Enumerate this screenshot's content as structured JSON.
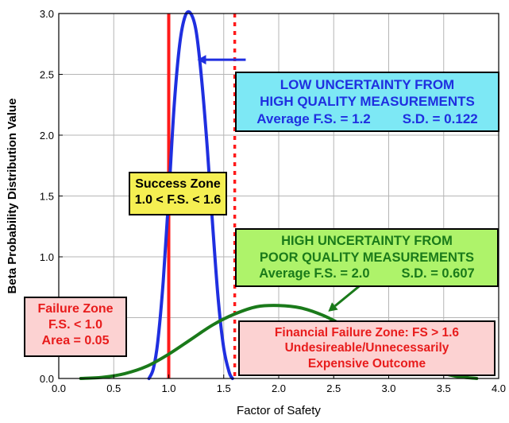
{
  "chart_data": {
    "type": "line",
    "xlabel": "Factor of Safety",
    "ylabel": "Beta Probability Distribution Value",
    "xlim": [
      0.0,
      4.0
    ],
    "ylim": [
      0.0,
      3.0
    ],
    "xticks": [
      "0.0",
      "0.5",
      "1.0",
      "1.5",
      "2.0",
      "2.5",
      "3.0",
      "3.5",
      "4.0"
    ],
    "yticks": [
      "0.0",
      "0.5",
      "1.0",
      "1.5",
      "2.0",
      "2.5",
      "3.0"
    ],
    "grid": true,
    "series": [
      {
        "color": "#1f2fe0",
        "x": [
          0.82,
          0.86,
          0.9,
          0.95,
          1.0,
          1.05,
          1.1,
          1.15,
          1.2,
          1.25,
          1.3,
          1.35,
          1.4,
          1.45,
          1.5,
          1.55,
          1.58
        ],
        "y": [
          0.0,
          0.08,
          0.3,
          0.8,
          1.5,
          2.25,
          2.75,
          2.98,
          3.0,
          2.85,
          2.45,
          1.9,
          1.25,
          0.65,
          0.25,
          0.05,
          0.0
        ]
      },
      {
        "color": "#1a7a1a",
        "x": [
          0.2,
          0.4,
          0.6,
          0.8,
          1.0,
          1.2,
          1.4,
          1.6,
          1.8,
          2.0,
          2.2,
          2.4,
          2.6,
          2.8,
          3.0,
          3.2,
          3.4,
          3.6,
          3.8
        ],
        "y": [
          0.0,
          0.01,
          0.04,
          0.1,
          0.2,
          0.32,
          0.44,
          0.53,
          0.59,
          0.6,
          0.58,
          0.52,
          0.43,
          0.33,
          0.23,
          0.14,
          0.07,
          0.02,
          0.0
        ]
      }
    ],
    "vlines": [
      {
        "x": 1.0,
        "color": "#ff1a1a",
        "style": "solid"
      },
      {
        "x": 1.6,
        "color": "#ff1a1a",
        "style": "dotted"
      }
    ],
    "arrows": [
      {
        "color": "#1f2fe0",
        "from": [
          1.7,
          2.62
        ],
        "to": [
          1.26,
          2.62
        ]
      },
      {
        "color": "#1a7a1a",
        "from": [
          2.95,
          0.92
        ],
        "to": [
          2.45,
          0.55
        ]
      }
    ]
  },
  "annotations": {
    "low": {
      "line1": "LOW  UNCERTAINTY FROM",
      "line2": "HIGH QUALITY MEASUREMENTS",
      "line3a": "Average F.S. = 1.2",
      "line3b": "S.D. = 0.122",
      "bg": "#7de8f5",
      "color": "#1f2fe0"
    },
    "success": {
      "line1": "Success   Zone",
      "line2": "1.0 < F.S. < 1.6",
      "bg": "#f5ef52",
      "color": "#000000"
    },
    "high": {
      "line1": "HIGH  UNCERTAINTY FROM",
      "line2": "POOR QUALITY MEASUREMENTS",
      "line3a": "Average F.S. = 2.0",
      "line3b": "S.D. = 0.607",
      "bg": "#aef36a",
      "color": "#1a7a1a"
    },
    "failure": {
      "line1": "Failure  Zone",
      "line2": "F.S. < 1.0",
      "line3": "Area = 0.05",
      "bg": "#fcd2d2",
      "color": "#e81c1c"
    },
    "financial": {
      "line1": "Financial Failure Zone: FS > 1.6",
      "line2": "Undesireable/Unnecessarily",
      "line3": "Expensive Outcome",
      "bg": "#fcd2d2",
      "color": "#e81c1c"
    }
  }
}
